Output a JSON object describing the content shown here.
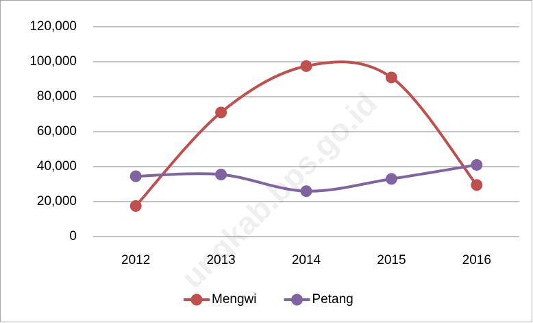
{
  "chart_data": {
    "type": "line",
    "smooth": true,
    "categories": [
      "2012",
      "2013",
      "2014",
      "2015",
      "2016"
    ],
    "series": [
      {
        "name": "Mengwi",
        "color": "#c0504d",
        "values": [
          17500,
          71000,
          97500,
          91000,
          29500
        ]
      },
      {
        "name": "Petang",
        "color": "#8064a2",
        "values": [
          34500,
          35500,
          26000,
          33000,
          41000
        ]
      }
    ],
    "ylim": [
      0,
      120000
    ],
    "yticks": [
      0,
      {
        "value": 20000,
        "label": "20,000"
      },
      {
        "value": 40000,
        "label": "40,000"
      },
      {
        "value": 60000,
        "label": "60,000"
      },
      {
        "value": 80000,
        "label": "80,000"
      },
      {
        "value": 100000,
        "label": "100,000"
      },
      {
        "value": 120000,
        "label": "120,000"
      }
    ],
    "grid": true,
    "legend": "bottom",
    "watermark": "ungkab.bps.go.id"
  }
}
